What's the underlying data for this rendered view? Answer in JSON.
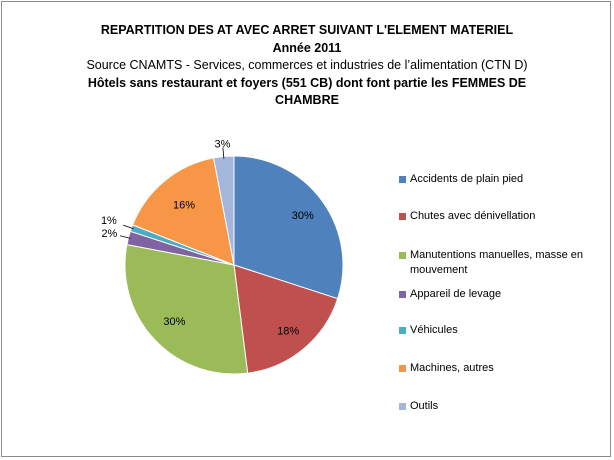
{
  "title": {
    "line1": "REPARTITION DES AT AVEC ARRET SUIVANT L'ELEMENT MATERIEL",
    "line2": "Année 2011",
    "line3": "Source CNAMTS -  Services, commerces et industries de l’alimentation (CTN D)",
    "line4": "Hôtels sans restaurant et foyers (551 CB) dont font partie les FEMMES DE",
    "line5": "CHAMBRE"
  },
  "chart_data": {
    "type": "pie",
    "title": "REPARTITION DES AT AVEC ARRET SUIVANT L'ELEMENT MATERIEL",
    "legend_position": "right",
    "slices": [
      {
        "label": "Accidents de plain pied",
        "value": 30,
        "display": "30%",
        "color": "#4f81bd"
      },
      {
        "label": "Chutes avec dénivellation",
        "value": 18,
        "display": "18%",
        "color": "#c0504d"
      },
      {
        "label": "Manutentions manuelles, masse en mouvement",
        "value": 30,
        "display": "30%",
        "color": "#9bbb59"
      },
      {
        "label": "Appareil de levage",
        "value": 2,
        "display": "2%",
        "color": "#8064a2"
      },
      {
        "label": "Véhicules",
        "value": 1,
        "display": "1%",
        "color": "#4bacc6"
      },
      {
        "label": "Machines, autres",
        "value": 16,
        "display": "16%",
        "color": "#f79646"
      },
      {
        "label": "Outils",
        "value": 3,
        "display": "3%",
        "color": "#a5b6dd"
      }
    ]
  }
}
